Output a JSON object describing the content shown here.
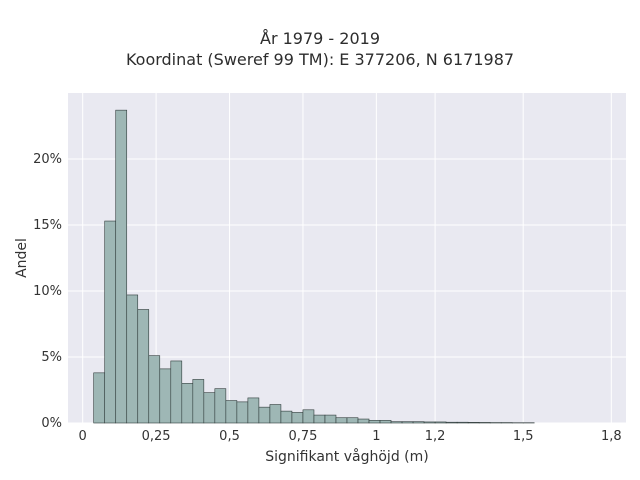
{
  "chart_data": {
    "type": "bar",
    "title": "År 1979 - 2019",
    "subtitle": "Koordinat (Sweref 99 TM): E 377206, N 6171987",
    "xlabel": "Signifikant våghöjd (m)",
    "ylabel": "Andel",
    "xlim": [
      -0.05,
      1.85
    ],
    "ylim": [
      0,
      0.25
    ],
    "grid": true,
    "bin_width": 0.0375,
    "bins_start": [
      0.0375,
      0.075,
      0.1125,
      0.15,
      0.1875,
      0.225,
      0.2625,
      0.3,
      0.3375,
      0.375,
      0.4125,
      0.45,
      0.4875,
      0.525,
      0.5625,
      0.6,
      0.6375,
      0.675,
      0.7125,
      0.75,
      0.7875,
      0.825,
      0.8625,
      0.9,
      0.9375,
      0.975,
      1.0125,
      1.05,
      1.0875,
      1.125,
      1.1625,
      1.2,
      1.2375,
      1.275,
      1.3125,
      1.35,
      1.3875,
      1.425,
      1.4625,
      1.5
    ],
    "values": [
      0.038,
      0.153,
      0.237,
      0.097,
      0.086,
      0.051,
      0.041,
      0.047,
      0.03,
      0.033,
      0.023,
      0.026,
      0.017,
      0.016,
      0.019,
      0.012,
      0.014,
      0.009,
      0.008,
      0.01,
      0.006,
      0.006,
      0.004,
      0.004,
      0.003,
      0.002,
      0.002,
      0.001,
      0.001,
      0.001,
      0.0008,
      0.0008,
      0.0006,
      0.0006,
      0.0005,
      0.0004,
      0.0003,
      0.0003,
      0.0002,
      0.0002
    ],
    "x_ticks": [
      {
        "value": 0,
        "label": "0"
      },
      {
        "value": 0.25,
        "label": "0,25"
      },
      {
        "value": 0.5,
        "label": "0,5"
      },
      {
        "value": 0.75,
        "label": "0,75"
      },
      {
        "value": 1.0,
        "label": "1"
      },
      {
        "value": 1.2,
        "label": "1,2"
      },
      {
        "value": 1.5,
        "label": "1,5"
      },
      {
        "value": 1.8,
        "label": "1,8"
      }
    ],
    "y_ticks": [
      {
        "value": 0,
        "label": "0%"
      },
      {
        "value": 0.05,
        "label": "5%"
      },
      {
        "value": 0.1,
        "label": "10%"
      },
      {
        "value": 0.15,
        "label": "15%"
      },
      {
        "value": 0.2,
        "label": "20%"
      }
    ],
    "colors": {
      "bar_fill": "#9eb7b5",
      "bar_stroke": "#2f3b3a",
      "plot_bg": "#e9e9f1",
      "grid": "#ffffff"
    }
  }
}
